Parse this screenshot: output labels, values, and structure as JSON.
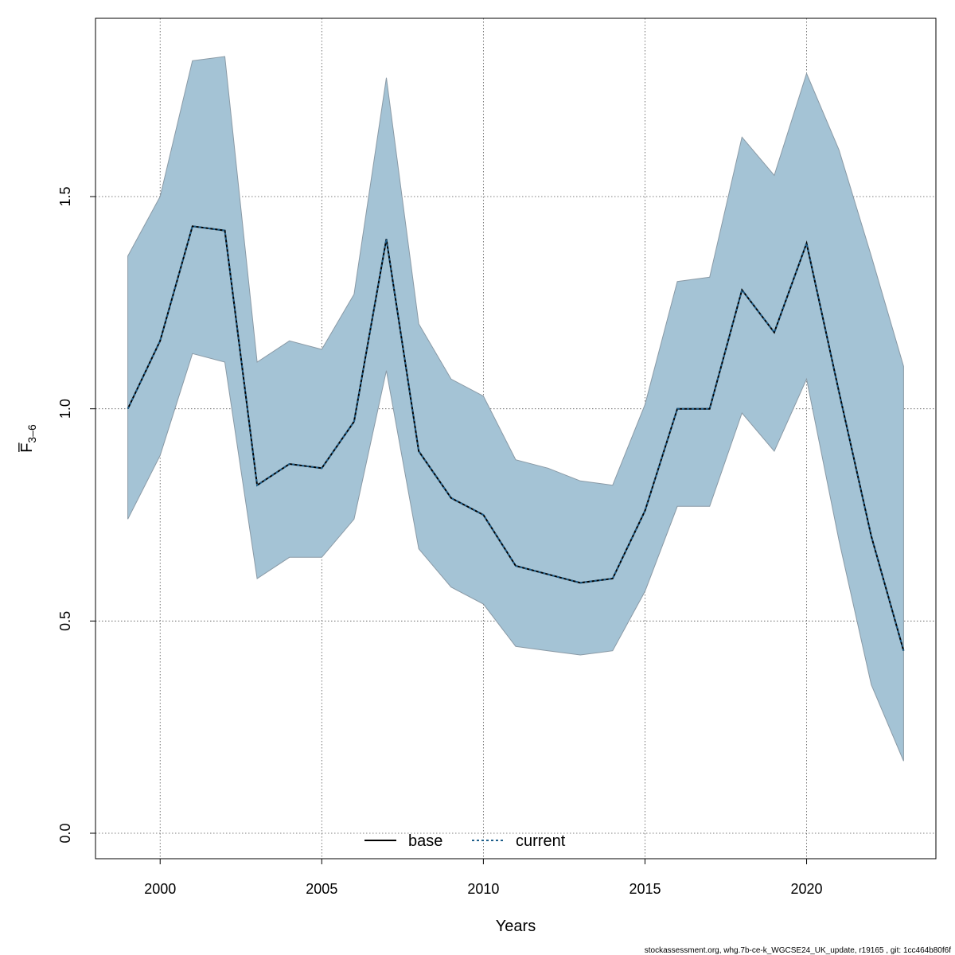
{
  "chart_data": {
    "type": "line",
    "xlabel": "Years",
    "ylabel": "F̅",
    "ylabel_subscript": "3–6",
    "xlim": [
      1998,
      2024
    ],
    "ylim": [
      -0.06,
      1.92
    ],
    "x_ticks": [
      2000,
      2005,
      2010,
      2015,
      2020
    ],
    "y_ticks": [
      0.0,
      0.5,
      1.0,
      1.5
    ],
    "grid": true,
    "legend_position": "bottom",
    "x": [
      1999,
      2000,
      2001,
      2002,
      2003,
      2004,
      2005,
      2006,
      2007,
      2008,
      2009,
      2010,
      2011,
      2012,
      2013,
      2014,
      2015,
      2016,
      2017,
      2018,
      2019,
      2020,
      2021,
      2022,
      2023
    ],
    "series": [
      {
        "name": "base",
        "style": "solid",
        "color": "#000000",
        "values": [
          1.0,
          1.16,
          1.43,
          1.42,
          0.82,
          0.87,
          0.86,
          0.97,
          1.4,
          0.9,
          0.79,
          0.75,
          0.63,
          0.61,
          0.59,
          0.6,
          0.76,
          1.0,
          1.0,
          1.28,
          1.18,
          1.39,
          1.04,
          0.7,
          0.43
        ]
      },
      {
        "name": "current",
        "style": "dashed",
        "color": "#1f5f8b",
        "values": [
          1.0,
          1.16,
          1.43,
          1.42,
          0.82,
          0.87,
          0.86,
          0.97,
          1.4,
          0.9,
          0.79,
          0.75,
          0.63,
          0.61,
          0.59,
          0.6,
          0.76,
          1.0,
          1.0,
          1.28,
          1.18,
          1.39,
          1.04,
          0.7,
          0.43
        ]
      }
    ],
    "confidence_band": {
      "lower": [
        0.74,
        0.89,
        1.13,
        1.11,
        0.6,
        0.65,
        0.65,
        0.74,
        1.09,
        0.67,
        0.58,
        0.54,
        0.44,
        0.43,
        0.42,
        0.43,
        0.57,
        0.77,
        0.77,
        0.99,
        0.9,
        1.07,
        0.69,
        0.35,
        0.17
      ],
      "upper": [
        1.36,
        1.5,
        1.82,
        1.83,
        1.11,
        1.16,
        1.14,
        1.27,
        1.78,
        1.2,
        1.07,
        1.03,
        0.88,
        0.86,
        0.83,
        0.82,
        1.01,
        1.3,
        1.31,
        1.64,
        1.55,
        1.79,
        1.61,
        1.36,
        1.1
      ],
      "fill_color": "#a4c3d5",
      "stroke_color": "#8a9aa6"
    }
  },
  "footer": "stockassessment.org, whg.7b-ce-k_WGCSE24_UK_update, r19165 , git: 1cc464b80f6f"
}
